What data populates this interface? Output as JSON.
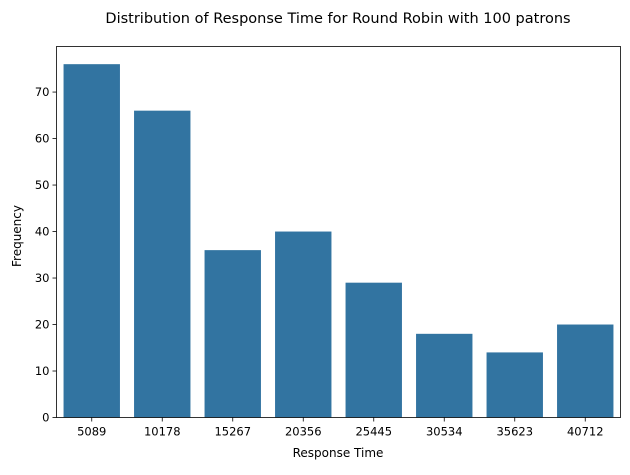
{
  "chart_data": {
    "type": "bar",
    "title": "Distribution of Response Time for Round Robin with 100 patrons",
    "xlabel": "Response Time",
    "ylabel": "Frequency",
    "categories": [
      "5089",
      "10178",
      "15267",
      "20356",
      "25445",
      "30534",
      "35623",
      "40712"
    ],
    "values": [
      76,
      66,
      36,
      40,
      29,
      18,
      14,
      20
    ],
    "ylim": [
      0,
      79.8
    ],
    "yticks": [
      0,
      10,
      20,
      30,
      40,
      50,
      60,
      70
    ],
    "bar_color": "#3274a1",
    "grid": false,
    "legend": "none"
  }
}
